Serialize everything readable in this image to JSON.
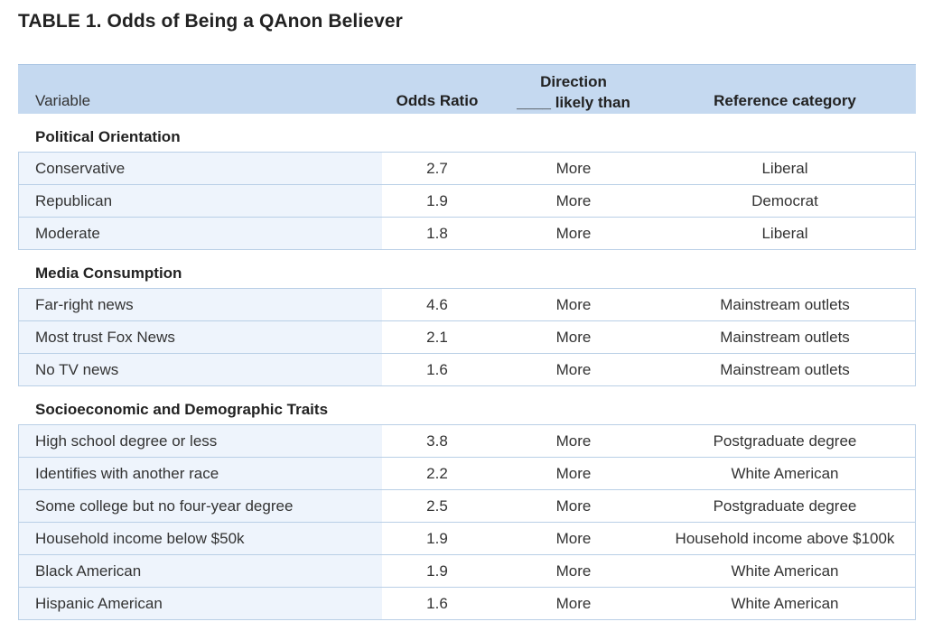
{
  "title": "TABLE 1. Odds of Being a QAnon Believer",
  "header": {
    "variable": "Variable",
    "odds_ratio": "Odds Ratio",
    "direction_line1": "Direction",
    "direction_line2": "____ likely than",
    "reference": "Reference category"
  },
  "sections": [
    {
      "title": "Political Orientation",
      "rows": [
        {
          "variable": "Conservative",
          "odds": "2.7",
          "direction": "More",
          "reference": "Liberal"
        },
        {
          "variable": "Republican",
          "odds": "1.9",
          "direction": "More",
          "reference": "Democrat"
        },
        {
          "variable": "Moderate",
          "odds": "1.8",
          "direction": "More",
          "reference": "Liberal"
        }
      ]
    },
    {
      "title": "Media Consumption",
      "rows": [
        {
          "variable": "Far-right news",
          "odds": "4.6",
          "direction": "More",
          "reference": "Mainstream outlets"
        },
        {
          "variable": "Most trust Fox News",
          "odds": "2.1",
          "direction": "More",
          "reference": "Mainstream outlets"
        },
        {
          "variable": "No TV news",
          "odds": "1.6",
          "direction": "More",
          "reference": "Mainstream outlets"
        }
      ]
    },
    {
      "title": "Socioeconomic and Demographic Traits",
      "rows": [
        {
          "variable": "High school degree or less",
          "odds": "3.8",
          "direction": "More",
          "reference": "Postgraduate degree"
        },
        {
          "variable": "Identifies with another race",
          "odds": "2.2",
          "direction": "More",
          "reference": "White American"
        },
        {
          "variable": "Some college but no four-year degree",
          "odds": "2.5",
          "direction": "More",
          "reference": "Postgraduate degree"
        },
        {
          "variable": "Household income below $50k",
          "odds": "1.9",
          "direction": "More",
          "reference": "Household income above $100k"
        },
        {
          "variable": "Black American",
          "odds": "1.9",
          "direction": "More",
          "reference": "White American"
        },
        {
          "variable": "Hispanic American",
          "odds": "1.6",
          "direction": "More",
          "reference": "White American"
        }
      ]
    }
  ]
}
